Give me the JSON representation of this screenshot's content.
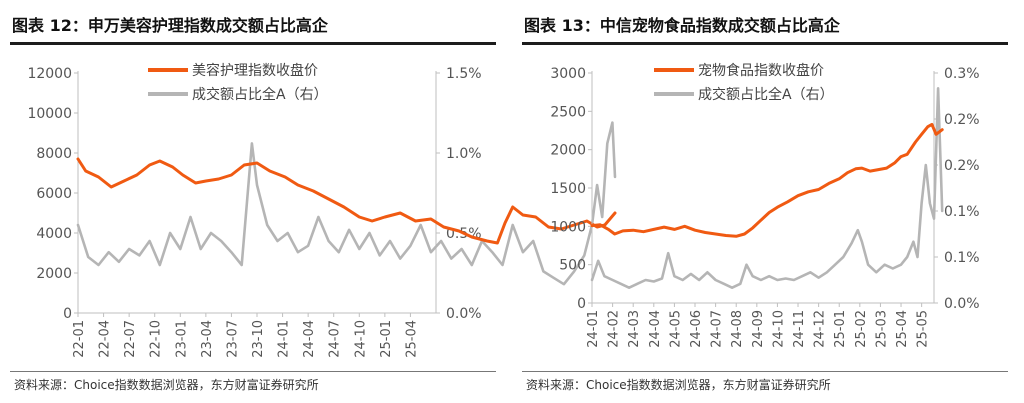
{
  "charts": [
    {
      "title": "图表 12：申万美容护理指数成交额占比高企",
      "source": "资料来源：Choice指数数据浏览器，东方财富证券研究所"
    },
    {
      "title": "图表 13：中信宠物食品指数成交额占比高企",
      "source": "资料来源：Choice指数数据浏览器，东方财富证券研究所"
    }
  ],
  "colors": {
    "price": "#f05a12",
    "share": "#b5b5b5",
    "axis": "#bfbfbf",
    "text": "#555555"
  },
  "chart_data": [
    {
      "type": "line",
      "x_ticks": [
        "22-01",
        "22-04",
        "22-07",
        "22-10",
        "23-01",
        "23-04",
        "23-07",
        "23-10",
        "24-01",
        "24-04",
        "24-07",
        "24-10",
        "25-01",
        "25-04"
      ],
      "y_left": {
        "range": [
          0,
          12000
        ],
        "ticks": [
          "0",
          "2000",
          "4000",
          "6000",
          "8000",
          "10000",
          "12000"
        ]
      },
      "y_right": {
        "range": [
          0,
          1.5
        ],
        "ticks": [
          "0.0%",
          "0.5%",
          "1.0%",
          "1.5%"
        ]
      },
      "legend_position": "top-center",
      "series": [
        {
          "name": "美容护理指数收盘价",
          "axis": "left",
          "color": "#f05a12",
          "points": [
            [
              0,
              7700
            ],
            [
              0.3,
              7100
            ],
            [
              0.8,
              6800
            ],
            [
              1.3,
              6300
            ],
            [
              1.8,
              6600
            ],
            [
              2.3,
              6900
            ],
            [
              2.8,
              7400
            ],
            [
              3.2,
              7600
            ],
            [
              3.7,
              7300
            ],
            [
              4.1,
              6900
            ],
            [
              4.6,
              6500
            ],
            [
              5.0,
              6600
            ],
            [
              5.5,
              6700
            ],
            [
              6.0,
              6900
            ],
            [
              6.5,
              7400
            ],
            [
              7.0,
              7500
            ],
            [
              7.5,
              7100
            ],
            [
              8.1,
              6800
            ],
            [
              8.6,
              6400
            ],
            [
              9.2,
              6100
            ],
            [
              9.8,
              5700
            ],
            [
              10.4,
              5300
            ],
            [
              11.0,
              4800
            ],
            [
              11.5,
              4600
            ],
            [
              12.0,
              4800
            ],
            [
              12.6,
              5000
            ],
            [
              13.2,
              4600
            ],
            [
              13.8,
              4700
            ],
            [
              14.3,
              4300
            ],
            [
              14.9,
              4100
            ],
            [
              15.4,
              3800
            ],
            [
              16.0,
              3600
            ],
            [
              16.4,
              3500
            ],
            [
              16.7,
              4500
            ],
            [
              17.0,
              5300
            ],
            [
              17.4,
              4900
            ],
            [
              17.9,
              4800
            ],
            [
              18.4,
              4300
            ],
            [
              18.9,
              4200
            ],
            [
              19.4,
              4400
            ],
            [
              19.9,
              4600
            ],
            [
              20.3,
              4300
            ],
            [
              20.6,
              4400
            ],
            [
              21.0,
              5000
            ]
          ]
        },
        {
          "name": "成交额占比全A（右）",
          "axis": "right",
          "color": "#b5b5b5",
          "points": [
            [
              0,
              0.55
            ],
            [
              0.4,
              0.35
            ],
            [
              0.8,
              0.3
            ],
            [
              1.2,
              0.38
            ],
            [
              1.6,
              0.32
            ],
            [
              2.0,
              0.4
            ],
            [
              2.4,
              0.36
            ],
            [
              2.8,
              0.45
            ],
            [
              3.2,
              0.3
            ],
            [
              3.6,
              0.5
            ],
            [
              4.0,
              0.4
            ],
            [
              4.4,
              0.6
            ],
            [
              4.8,
              0.4
            ],
            [
              5.2,
              0.5
            ],
            [
              5.6,
              0.45
            ],
            [
              6.0,
              0.38
            ],
            [
              6.4,
              0.3
            ],
            [
              6.8,
              1.06
            ],
            [
              7.0,
              0.8
            ],
            [
              7.4,
              0.55
            ],
            [
              7.8,
              0.45
            ],
            [
              8.2,
              0.5
            ],
            [
              8.6,
              0.38
            ],
            [
              9.0,
              0.42
            ],
            [
              9.4,
              0.6
            ],
            [
              9.8,
              0.45
            ],
            [
              10.2,
              0.38
            ],
            [
              10.6,
              0.52
            ],
            [
              11.0,
              0.4
            ],
            [
              11.4,
              0.5
            ],
            [
              11.8,
              0.36
            ],
            [
              12.2,
              0.45
            ],
            [
              12.6,
              0.34
            ],
            [
              13.0,
              0.42
            ],
            [
              13.4,
              0.55
            ],
            [
              13.8,
              0.38
            ],
            [
              14.2,
              0.45
            ],
            [
              14.6,
              0.34
            ],
            [
              15.0,
              0.4
            ],
            [
              15.4,
              0.3
            ],
            [
              15.8,
              0.45
            ],
            [
              16.2,
              0.38
            ],
            [
              16.6,
              0.3
            ],
            [
              17.0,
              0.55
            ],
            [
              17.4,
              0.38
            ],
            [
              17.8,
              0.45
            ],
            [
              18.2,
              0.26
            ],
            [
              18.6,
              0.22
            ],
            [
              19.0,
              0.18
            ],
            [
              19.4,
              0.26
            ],
            [
              19.8,
              0.36
            ],
            [
              20.1,
              0.55
            ],
            [
              20.3,
              0.8
            ],
            [
              20.5,
              0.6
            ],
            [
              20.7,
              1.06
            ],
            [
              20.9,
              1.19
            ],
            [
              21.0,
              0.85
            ]
          ]
        }
      ]
    },
    {
      "type": "line",
      "x_ticks": [
        "24-01",
        "24-02",
        "24-03",
        "24-04",
        "24-05",
        "24-06",
        "24-07",
        "24-08",
        "24-09",
        "24-10",
        "24-11",
        "24-12",
        "25-01",
        "25-02",
        "25-03",
        "25-04",
        "25-05"
      ],
      "y_left": {
        "range": [
          0,
          3000
        ],
        "ticks": [
          "0",
          "500",
          "1000",
          "1500",
          "2000",
          "2500",
          "3000"
        ]
      },
      "y_right": {
        "range": [
          0,
          0.3
        ],
        "ticks": [
          "0.0%",
          "0.1%",
          "0.1%",
          "0.2%",
          "0.2%",
          "0.3%"
        ]
      },
      "legend_position": "top-center",
      "series": [
        {
          "name": "宠物食品指数收盘价",
          "axis": "left",
          "color": "#f05a12",
          "points": [
            [
              0,
              1010
            ],
            [
              0.4,
              1020
            ],
            [
              0.8,
              960
            ],
            [
              1.1,
              900
            ],
            [
              1.5,
              940
            ],
            [
              2.0,
              950
            ],
            [
              2.5,
              930
            ],
            [
              3.0,
              960
            ],
            [
              3.5,
              990
            ],
            [
              4.0,
              960
            ],
            [
              4.5,
              1000
            ],
            [
              5.0,
              950
            ],
            [
              5.5,
              920
            ],
            [
              6.0,
              900
            ],
            [
              6.5,
              880
            ],
            [
              7.0,
              870
            ],
            [
              7.4,
              900
            ],
            [
              7.8,
              980
            ],
            [
              8.2,
              1080
            ],
            [
              8.6,
              1180
            ],
            [
              9.0,
              1250
            ],
            [
              9.5,
              1320
            ],
            [
              10.0,
              1400
            ],
            [
              10.5,
              1450
            ],
            [
              11.0,
              1480
            ],
            [
              11.5,
              1560
            ],
            [
              12.0,
              1620
            ],
            [
              12.4,
              1700
            ],
            [
              12.8,
              1750
            ],
            [
              13.1,
              1760
            ],
            [
              13.5,
              1720
            ],
            [
              13.9,
              1740
            ],
            [
              14.3,
              1760
            ],
            [
              14.7,
              1830
            ],
            [
              15.0,
              1910
            ],
            [
              15.3,
              1940
            ],
            [
              15.7,
              2100
            ],
            [
              16.0,
              2200
            ],
            [
              16.3,
              2300
            ],
            [
              16.5,
              2330
            ],
            [
              16.7,
              2200
            ],
            [
              17.0,
              2260
            ]
          ]
        },
        {
          "name": "成交额占比全A（右）",
          "axis": "right",
          "color": "#b5b5b5",
          "points": [
            [
              0,
              0.03
            ],
            [
              0.3,
              0.055
            ],
            [
              0.6,
              0.035
            ],
            [
              1.0,
              0.03
            ],
            [
              1.4,
              0.025
            ],
            [
              1.8,
              0.02
            ],
            [
              2.2,
              0.025
            ],
            [
              2.6,
              0.03
            ],
            [
              3.0,
              0.028
            ],
            [
              3.4,
              0.032
            ],
            [
              3.7,
              0.065
            ],
            [
              4.0,
              0.035
            ],
            [
              4.4,
              0.03
            ],
            [
              4.8,
              0.038
            ],
            [
              5.2,
              0.03
            ],
            [
              5.6,
              0.04
            ],
            [
              6.0,
              0.03
            ],
            [
              6.4,
              0.025
            ],
            [
              6.8,
              0.02
            ],
            [
              7.2,
              0.025
            ],
            [
              7.5,
              0.05
            ],
            [
              7.8,
              0.035
            ],
            [
              8.2,
              0.03
            ],
            [
              8.6,
              0.035
            ],
            [
              9.0,
              0.03
            ],
            [
              9.4,
              0.032
            ],
            [
              9.8,
              0.03
            ],
            [
              10.2,
              0.035
            ],
            [
              10.6,
              0.04
            ],
            [
              11.0,
              0.033
            ],
            [
              11.4,
              0.04
            ],
            [
              11.8,
              0.05
            ],
            [
              12.2,
              0.06
            ],
            [
              12.6,
              0.078
            ],
            [
              12.9,
              0.095
            ],
            [
              13.1,
              0.08
            ],
            [
              13.4,
              0.05
            ],
            [
              13.8,
              0.04
            ],
            [
              14.2,
              0.05
            ],
            [
              14.6,
              0.045
            ],
            [
              15.0,
              0.05
            ],
            [
              15.3,
              0.06
            ],
            [
              15.6,
              0.08
            ],
            [
              15.8,
              0.06
            ],
            [
              16.0,
              0.13
            ],
            [
              16.2,
              0.18
            ],
            [
              16.4,
              0.13
            ],
            [
              16.6,
              0.11
            ],
            [
              16.8,
              0.28
            ],
            [
              17.0,
              0.12
            ]
          ]
        }
      ]
    }
  ]
}
